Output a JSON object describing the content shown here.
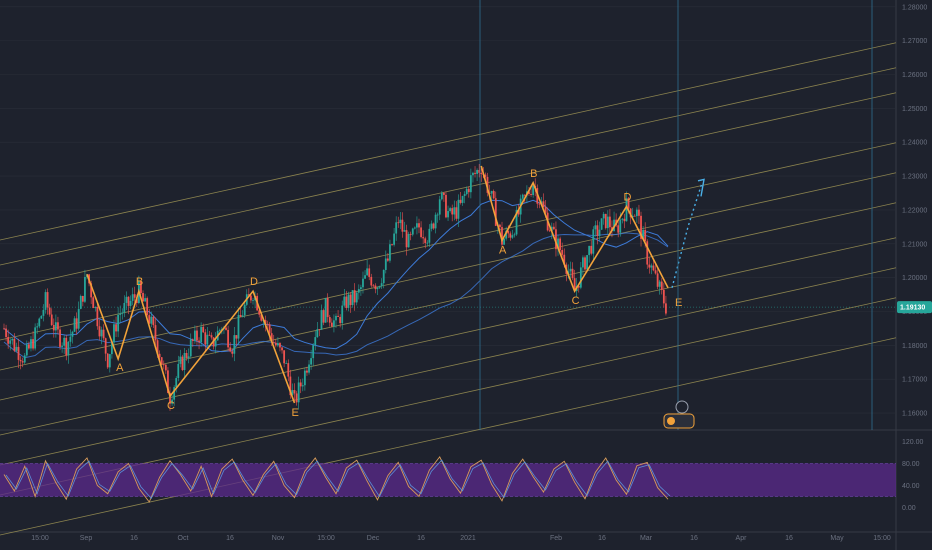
{
  "chart_data": [
    {
      "type": "line",
      "symbol_note": "main price pane (candlesticks with pitchfork channels)",
      "y_ticks": [
        "1.16000",
        "1.17000",
        "1.18000",
        "1.19000",
        "1.20000",
        "1.21000",
        "1.22000",
        "1.23000",
        "1.24000",
        "1.25000",
        "1.26000",
        "1.27000",
        "1.28000"
      ],
      "ylim": [
        1.155,
        1.282
      ],
      "last_price": "1.19130",
      "x_ticks": [
        "15:00",
        "Sep",
        "16",
        "Oct",
        "16",
        "Nov",
        "15:00",
        "Dec",
        "16",
        "2021",
        "Feb",
        "16",
        "Mar",
        "16",
        "Apr",
        "16",
        "May",
        "15:00"
      ],
      "wave_labels": [
        {
          "text": "A",
          "value": 1.176
        },
        {
          "text": "B",
          "value": 1.199
        },
        {
          "text": "C",
          "value": 1.163
        },
        {
          "text": "D",
          "value": 1.197
        },
        {
          "text": "E",
          "value": 1.16
        },
        {
          "text": "A",
          "value": 1.208
        },
        {
          "text": "B",
          "value": 1.228
        },
        {
          "text": "C",
          "value": 1.196
        },
        {
          "text": "D",
          "value": 1.226
        },
        {
          "text": "E",
          "value": 1.191
        }
      ],
      "price_series": [
        1.185,
        1.18,
        1.176,
        1.183,
        1.193,
        1.184,
        1.18,
        1.187,
        1.201,
        1.188,
        1.176,
        1.189,
        1.192,
        1.196,
        1.188,
        1.178,
        1.165,
        1.174,
        1.18,
        1.184,
        1.18,
        1.186,
        1.18,
        1.19,
        1.196,
        1.188,
        1.181,
        1.176,
        1.163,
        1.172,
        1.184,
        1.191,
        1.186,
        1.193,
        1.194,
        1.201,
        1.198,
        1.205,
        1.217,
        1.21,
        1.215,
        1.212,
        1.224,
        1.218,
        1.221,
        1.229,
        1.233,
        1.223,
        1.211,
        1.214,
        1.222,
        1.228,
        1.22,
        1.212,
        1.206,
        1.196,
        1.205,
        1.213,
        1.217,
        1.214,
        1.221,
        1.219,
        1.206,
        1.198,
        1.19
      ]
    },
    {
      "type": "line",
      "symbol_note": "oscillator pane",
      "y_ticks": [
        "120.00",
        "80.00",
        "40.00",
        "0.00"
      ],
      "ylim": [
        -10,
        130
      ],
      "band": [
        20,
        80
      ],
      "values": [
        60,
        30,
        75,
        20,
        85,
        45,
        15,
        70,
        90,
        40,
        25,
        65,
        80,
        35,
        10,
        55,
        85,
        60,
        30,
        75,
        20,
        70,
        88,
        50,
        22,
        60,
        84,
        40,
        18,
        66,
        90,
        55,
        25,
        72,
        86,
        48,
        14,
        58,
        82,
        38,
        20,
        68,
        92,
        52,
        26,
        74,
        86,
        42,
        12,
        62,
        88,
        56,
        28,
        70,
        84,
        46,
        16,
        64,
        90,
        50,
        24,
        76,
        82,
        36,
        15
      ]
    }
  ],
  "colors": {
    "background": "#1e222d",
    "grid": "#2a2e39",
    "candle_up": "#26a69a",
    "candle_down": "#ef5350",
    "channel": "#b0a45a",
    "wave": "#f2a23a",
    "ma_blue": "#3d7bd9",
    "projection": "#4ab0e8",
    "oscillator_band": "#5b2a8c",
    "price_badge": "#26a69a"
  }
}
